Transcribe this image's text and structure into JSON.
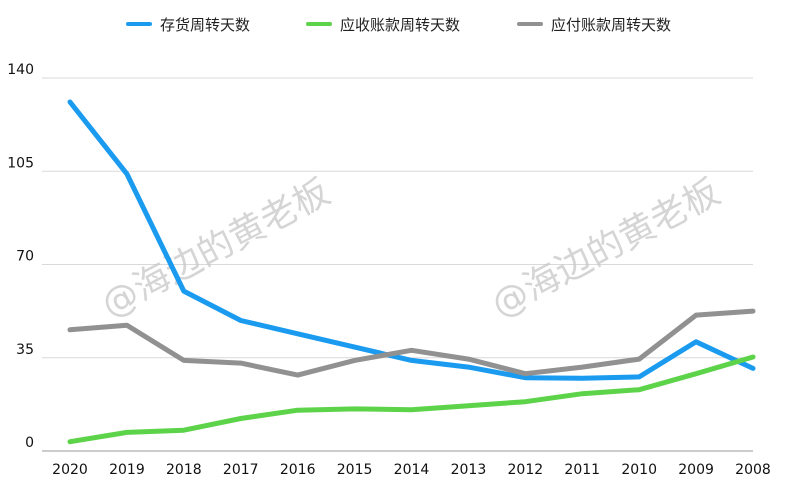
{
  "chart_data": {
    "type": "line",
    "categories": [
      "2020",
      "2019",
      "2018",
      "2017",
      "2016",
      "2015",
      "2014",
      "2013",
      "2012",
      "2011",
      "2010",
      "2009",
      "2008"
    ],
    "ylim": [
      0,
      140
    ],
    "yticks": [
      0,
      35,
      70,
      105,
      140
    ],
    "grid": true,
    "legend_position": "top",
    "series": [
      {
        "name": "存货周转天数",
        "color": "#1a9bf0",
        "values": [
          131,
          104,
          60,
          49,
          44,
          39,
          34,
          31.5,
          27.5,
          27.3,
          27.8,
          41,
          31
        ]
      },
      {
        "name": "应收账款周转天数",
        "color": "#5dd34a",
        "values": [
          3.5,
          7,
          7.8,
          12.2,
          15.3,
          15.8,
          15.5,
          17,
          18.5,
          21.5,
          23,
          29,
          35.3
        ]
      },
      {
        "name": "应付账款周转天数",
        "color": "#919191",
        "values": [
          45.5,
          47.2,
          34,
          33,
          28.5,
          34,
          37.8,
          34.5,
          29,
          31.5,
          34.5,
          51,
          52.5
        ]
      }
    ]
  },
  "watermarks": [
    "@海边的黄老板",
    "@海边的黄老板"
  ]
}
